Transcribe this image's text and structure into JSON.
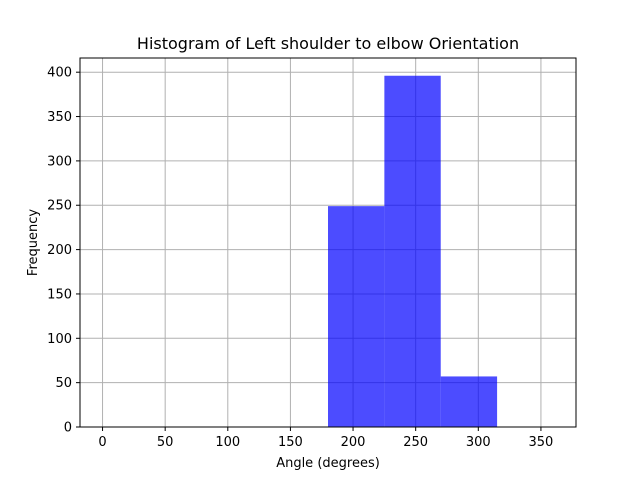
{
  "chart_data": {
    "type": "bar",
    "title": "Histogram of Left shoulder to elbow Orientation",
    "xlabel": "Angle (degrees)",
    "ylabel": "Frequency",
    "bins": [
      {
        "start": 0,
        "end": 45,
        "value": 0
      },
      {
        "start": 45,
        "end": 90,
        "value": 0
      },
      {
        "start": 90,
        "end": 135,
        "value": 0
      },
      {
        "start": 135,
        "end": 180,
        "value": 0
      },
      {
        "start": 180,
        "end": 225,
        "value": 249
      },
      {
        "start": 225,
        "end": 270,
        "value": 396
      },
      {
        "start": 270,
        "end": 315,
        "value": 57
      },
      {
        "start": 315,
        "end": 360,
        "value": 0
      }
    ],
    "xlim": [
      -18,
      378
    ],
    "ylim": [
      0,
      416
    ],
    "xticks": [
      0,
      50,
      100,
      150,
      200,
      250,
      300,
      350
    ],
    "yticks": [
      0,
      50,
      100,
      150,
      200,
      250,
      300,
      350,
      400
    ],
    "grid": true,
    "bar_color": "#0000ff",
    "bar_alpha": 0.7,
    "grid_color": "#b0b0b0"
  }
}
